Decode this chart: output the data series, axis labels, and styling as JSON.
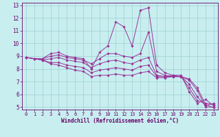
{
  "xlabel": "Windchill (Refroidissement éolien,°C)",
  "background_color": "#c8eef0",
  "line_color": "#993399",
  "grid_color": "#9dcfcf",
  "xlim": [
    -0.5,
    23.5
  ],
  "ylim": [
    4.8,
    13.2
  ],
  "xticks": [
    0,
    1,
    2,
    3,
    4,
    5,
    6,
    7,
    8,
    9,
    10,
    11,
    12,
    13,
    14,
    15,
    16,
    17,
    18,
    19,
    20,
    21,
    22,
    23
  ],
  "yticks": [
    5,
    6,
    7,
    8,
    9,
    10,
    11,
    12,
    13
  ],
  "series": [
    [
      8.9,
      8.8,
      8.8,
      9.2,
      9.3,
      9.0,
      8.9,
      8.8,
      8.0,
      9.3,
      9.8,
      11.7,
      11.3,
      9.8,
      12.6,
      12.8,
      8.3,
      7.7,
      7.5,
      7.5,
      6.2,
      5.3,
      5.6,
      5.1
    ],
    [
      8.9,
      8.8,
      8.8,
      9.0,
      9.1,
      8.9,
      8.8,
      8.7,
      8.4,
      8.8,
      9.2,
      9.2,
      9.0,
      8.9,
      9.2,
      10.9,
      7.8,
      7.5,
      7.4,
      7.4,
      6.5,
      5.5,
      5.3,
      5.2
    ],
    [
      8.9,
      8.8,
      8.7,
      8.8,
      8.9,
      8.7,
      8.6,
      8.5,
      8.1,
      8.4,
      8.6,
      8.7,
      8.5,
      8.4,
      8.7,
      8.9,
      7.5,
      7.4,
      7.4,
      7.4,
      6.8,
      5.8,
      5.1,
      5.3
    ],
    [
      8.9,
      8.8,
      8.7,
      8.5,
      8.5,
      8.3,
      8.2,
      8.1,
      7.7,
      7.9,
      8.0,
      8.1,
      8.0,
      7.9,
      8.2,
      8.3,
      7.4,
      7.4,
      7.5,
      7.4,
      7.1,
      6.3,
      5.0,
      5.0
    ],
    [
      8.9,
      8.8,
      8.7,
      8.4,
      8.3,
      8.1,
      7.9,
      7.8,
      7.4,
      7.5,
      7.5,
      7.6,
      7.5,
      7.5,
      7.7,
      7.8,
      7.3,
      7.3,
      7.4,
      7.4,
      7.2,
      6.5,
      5.2,
      4.95
    ]
  ]
}
